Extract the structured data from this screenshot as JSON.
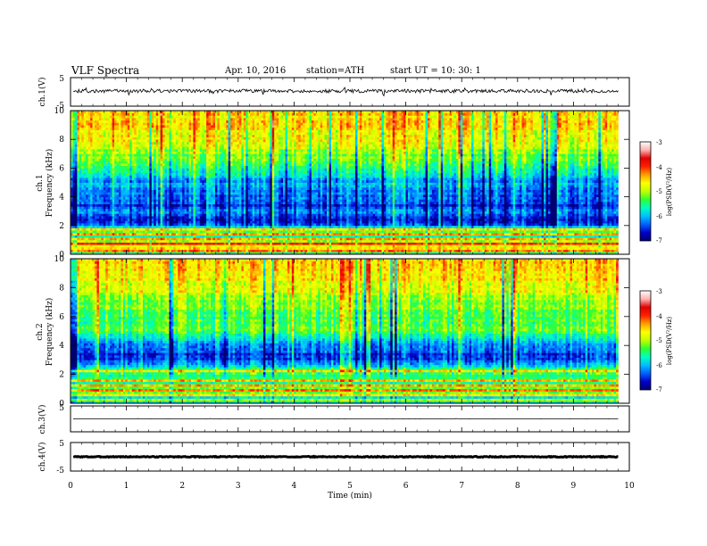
{
  "header": {
    "title": "VLF  Spectra",
    "date": "Apr. 10,  2016",
    "station": "station=ATH",
    "start": "start  UT  =    10: 30: 1"
  },
  "colors": {
    "colormap": [
      "#000070",
      "#0000c8",
      "#0060ff",
      "#00c0ff",
      "#00ffc0",
      "#30ff30",
      "#c0ff00",
      "#ffff00",
      "#ffa000",
      "#ff2000",
      "#e00000",
      "#ffb0b0",
      "#ffffff"
    ],
    "trace": "#000000",
    "frame": "#000000"
  },
  "chart_data": [
    {
      "id": "ch1-waveform",
      "type": "line",
      "ylabel": "ch.1(V)",
      "ylim": [
        -5,
        5
      ],
      "yticks": [
        "5",
        "-5"
      ],
      "xlim": [
        0,
        10
      ],
      "baseline": 0.3,
      "amplitude": 0.6,
      "spikes": [
        [
          0.28,
          0.9
        ],
        [
          1.05,
          -1.2
        ],
        [
          1.45,
          1.0
        ],
        [
          2.55,
          -1.4
        ],
        [
          3.1,
          0.9
        ],
        [
          3.45,
          -1.0
        ],
        [
          4.9,
          1.1
        ],
        [
          5.6,
          -1.2
        ],
        [
          6.45,
          0.9
        ],
        [
          7.05,
          1.3
        ],
        [
          8.6,
          -1.1
        ],
        [
          9.2,
          0.8
        ]
      ]
    },
    {
      "id": "ch1-spectrogram",
      "type": "heatmap",
      "ylabel_channel": "ch.1",
      "ylabel": "Frequency  (kHz)",
      "ylim": [
        0,
        10
      ],
      "yticks": [
        "0",
        "2",
        "4",
        "6",
        "8",
        "10"
      ],
      "xlim": [
        0,
        10
      ],
      "data_end_min": 9.8,
      "colorbar": {
        "label": "log(PSD(V²/Hz)",
        "range": [
          -7,
          -3
        ],
        "ticks": [
          "-3",
          "-4",
          "-5",
          "-6",
          "-7"
        ]
      },
      "profile_khz_level": [
        [
          0,
          3.2
        ],
        [
          0.2,
          5.0
        ],
        [
          0.5,
          2.6
        ],
        [
          0.8,
          5.5
        ],
        [
          1.2,
          3.6
        ],
        [
          1.5,
          4.8
        ],
        [
          1.8,
          3.4
        ],
        [
          2.2,
          1.0
        ],
        [
          2.6,
          0.9
        ],
        [
          3.0,
          2.5
        ],
        [
          3.2,
          1.2
        ],
        [
          4.0,
          1.6
        ],
        [
          5.0,
          2.3
        ],
        [
          6.0,
          3.4
        ],
        [
          7.0,
          4.6
        ],
        [
          8.0,
          5.5
        ],
        [
          9.0,
          6.0
        ],
        [
          10.0,
          6.2
        ]
      ],
      "lines_khz": [
        0.2,
        0.5,
        0.8,
        1.1,
        1.4,
        1.7
      ],
      "seed": 7
    },
    {
      "id": "ch2-spectrogram",
      "type": "heatmap",
      "ylabel_channel": "ch.2",
      "ylabel": "Frequency  (kHz)",
      "ylim": [
        0,
        10
      ],
      "yticks": [
        "0",
        "2",
        "4",
        "6",
        "8",
        "10"
      ],
      "xlim": [
        0,
        10
      ],
      "data_end_min": 9.8,
      "colorbar": {
        "label": "log(PSD(V²/Hz)",
        "range": [
          -7,
          -3
        ],
        "ticks": [
          "-3",
          "-4",
          "-5",
          "-6",
          "-7"
        ]
      },
      "profile_khz_level": [
        [
          0,
          3.6
        ],
        [
          0.3,
          2.4
        ],
        [
          0.7,
          4.2
        ],
        [
          1.0,
          4.8
        ],
        [
          1.3,
          3.4
        ],
        [
          1.6,
          4.2
        ],
        [
          2.0,
          3.8
        ],
        [
          2.5,
          3.6
        ],
        [
          3.0,
          1.2
        ],
        [
          3.5,
          1.4
        ],
        [
          4.0,
          2.0
        ],
        [
          4.6,
          3.2
        ],
        [
          5.2,
          4.4
        ],
        [
          6.0,
          4.0
        ],
        [
          7.0,
          4.8
        ],
        [
          8.0,
          5.6
        ],
        [
          9.0,
          6.1
        ],
        [
          10.0,
          6.3
        ]
      ],
      "lines_khz": [
        0.3,
        0.6,
        0.9,
        1.3,
        1.6,
        2.2
      ],
      "seed": 19
    },
    {
      "id": "ch3-waveform",
      "type": "line",
      "ylabel": "ch.3(V)",
      "ylim": [
        -5,
        5
      ],
      "yticks": [
        "5"
      ],
      "xlim": [
        0,
        10
      ],
      "baseline": 0.0,
      "amplitude": 0.02,
      "spikes": [
        [
          1.2,
          0.15
        ],
        [
          2.5,
          0.12
        ],
        [
          6.9,
          0.12
        ]
      ]
    },
    {
      "id": "ch4-waveform",
      "type": "line",
      "ylabel": "ch.4(V)",
      "ylim": [
        -5,
        5
      ],
      "yticks": [
        "5",
        "-5"
      ],
      "xlim": [
        0,
        10
      ],
      "baseline": 0.0,
      "amplitude": 0.15,
      "thick": true,
      "spikes": []
    }
  ],
  "x_axis": {
    "label": "Time  (min)",
    "ticks": [
      "0",
      "1",
      "2",
      "3",
      "4",
      "5",
      "6",
      "7",
      "8",
      "9",
      "10"
    ]
  }
}
